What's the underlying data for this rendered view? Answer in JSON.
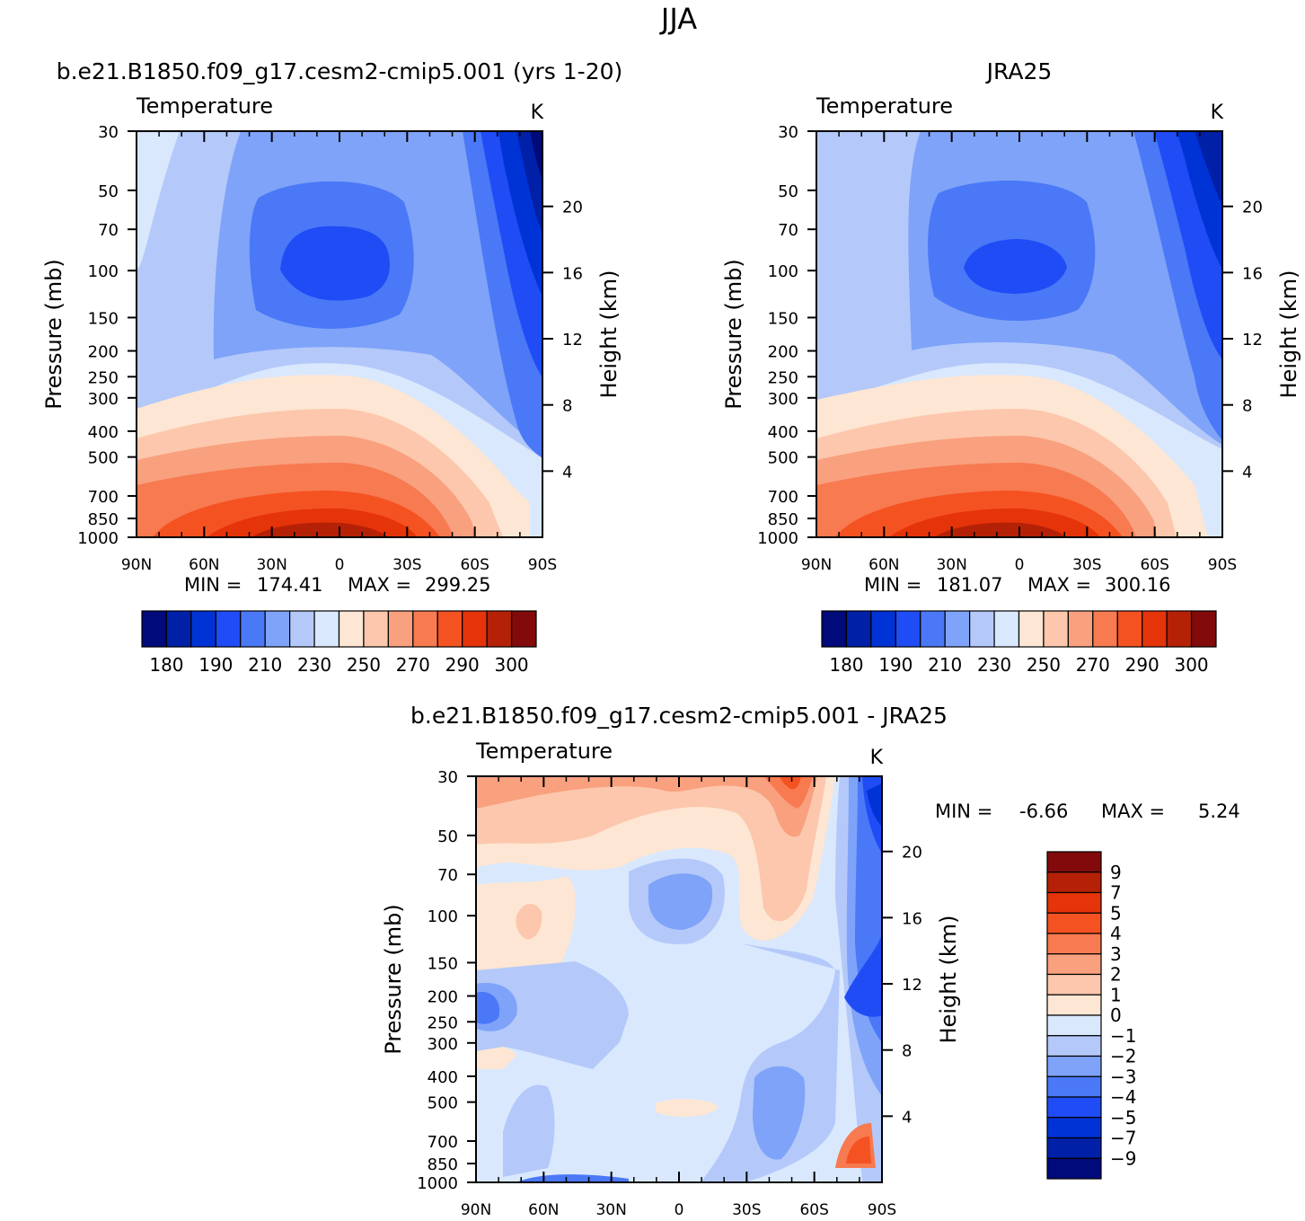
{
  "season": "JJA",
  "palette": {
    "temperature_levels": [
      "#000a7a",
      "#0020a8",
      "#0033d6",
      "#1f4cf5",
      "#4a78f7",
      "#7ea3f8",
      "#b4c9fa",
      "#d9e8fd",
      "#fde6d3",
      "#fcc7ac",
      "#f9a07e",
      "#f77a50",
      "#f55222",
      "#e5330a",
      "#b52106",
      "#820a0a"
    ],
    "difference_levels": [
      "#820a0a",
      "#b52106",
      "#e5330a",
      "#f55222",
      "#f77a50",
      "#f9a07e",
      "#fcc7ac",
      "#fde6d3",
      "#d9e8fd",
      "#b4c9fa",
      "#7ea3f8",
      "#4a78f7",
      "#1f4cf5",
      "#0033d6",
      "#0020a8",
      "#000a7a"
    ]
  },
  "chart_data": [
    {
      "type": "heatmap",
      "title": "b.e21.B1850.f09_g17.cesm2-cmip5.001  (yrs  1-20)",
      "left_label": "Temperature",
      "unit": "K",
      "ylabel": "Pressure  (mb)",
      "y2label": "Height  (km)",
      "x_ticks": [
        "90N",
        "60N",
        "30N",
        "0",
        "30S",
        "60S",
        "90S"
      ],
      "y_ticks": [
        30,
        50,
        70,
        100,
        150,
        200,
        250,
        300,
        400,
        500,
        700,
        850,
        1000
      ],
      "y2_ticks": [
        20,
        16,
        12,
        8,
        4
      ],
      "stats": {
        "min_label": "MIN  =",
        "min": "174.41",
        "max_label": "MAX  =",
        "max": "299.25"
      },
      "colorbar": {
        "labels": [
          "180",
          "190",
          "210",
          "230",
          "250",
          "270",
          "290",
          "300"
        ]
      },
      "min": 174.41,
      "max": 299.25
    },
    {
      "type": "heatmap",
      "title": "JRA25",
      "left_label": "Temperature",
      "unit": "K",
      "ylabel": "Pressure  (mb)",
      "y2label": "Height  (km)",
      "x_ticks": [
        "90N",
        "60N",
        "30N",
        "0",
        "30S",
        "60S",
        "90S"
      ],
      "y_ticks": [
        30,
        50,
        70,
        100,
        150,
        200,
        250,
        300,
        400,
        500,
        700,
        850,
        1000
      ],
      "y2_ticks": [
        20,
        16,
        12,
        8,
        4
      ],
      "stats": {
        "min_label": "MIN  =",
        "min": "181.07",
        "max_label": "MAX  =",
        "max": "300.16"
      },
      "colorbar": {
        "labels": [
          "180",
          "190",
          "210",
          "230",
          "250",
          "270",
          "290",
          "300"
        ]
      },
      "min": 181.07,
      "max": 300.16
    },
    {
      "type": "heatmap",
      "title": "b.e21.B1850.f09_g17.cesm2-cmip5.001  -  JRA25",
      "left_label": "Temperature",
      "unit": "K",
      "ylabel": "Pressure  (mb)",
      "y2label": "Height  (km)",
      "x_ticks": [
        "90N",
        "60N",
        "30N",
        "0",
        "30S",
        "60S",
        "90S"
      ],
      "y_ticks": [
        30,
        50,
        70,
        100,
        150,
        200,
        250,
        300,
        400,
        500,
        700,
        850,
        1000
      ],
      "y2_ticks": [
        20,
        16,
        12,
        8,
        4
      ],
      "stats": {
        "min_label": "MIN  =",
        "min": "-6.66",
        "max_label": "MAX  =",
        "max": "5.24"
      },
      "colorbar": {
        "labels": [
          "9",
          "7",
          "5",
          "4",
          "3",
          "2",
          "1",
          "0",
          "-1",
          "-2",
          "-3",
          "-4",
          "-5",
          "-7",
          "-9"
        ]
      },
      "min": -6.66,
      "max": 5.24
    }
  ]
}
